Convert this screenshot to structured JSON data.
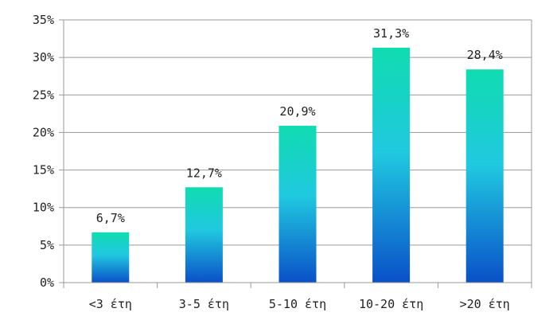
{
  "chart_data": {
    "type": "bar",
    "categories": [
      "<3 έτη",
      "3-5 έτη",
      "5-10 έτη",
      "10-20 έτη",
      ">20 έτη"
    ],
    "values": [
      6.7,
      12.7,
      20.9,
      31.3,
      28.4
    ],
    "value_labels": [
      "6,7%",
      "12,7%",
      "20,9%",
      "31,3%",
      "28,4%"
    ],
    "ylim": [
      0,
      35
    ],
    "y_ticks": [
      0,
      5,
      10,
      15,
      20,
      25,
      30,
      35
    ],
    "y_tick_labels": [
      "0%",
      "5%",
      "10%",
      "15%",
      "20%",
      "25%",
      "30%",
      "35%"
    ],
    "grid": true,
    "colors": {
      "bar_top": "#10dcb0",
      "bar_mid": "#20c8e0",
      "bar_bottom": "#0a50c8",
      "grid": "#9a9a9a",
      "axis": "#9a9a9a"
    }
  }
}
